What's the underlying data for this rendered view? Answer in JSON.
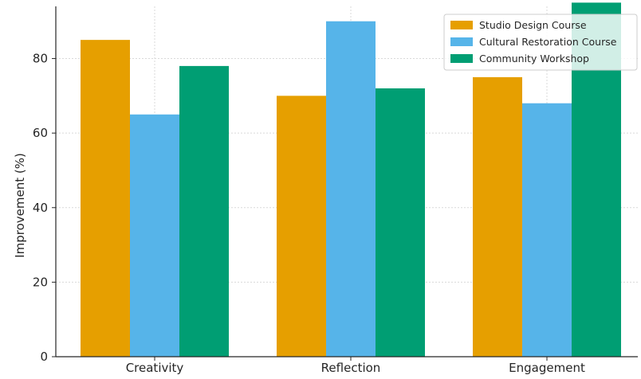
{
  "chart_data": {
    "type": "bar",
    "title": "",
    "xlabel": "",
    "ylabel": "Improvement (%)",
    "categories": [
      "Creativity",
      "Reflection",
      "Engagement"
    ],
    "series": [
      {
        "name": "Studio Design Course",
        "values": [
          85,
          70,
          75
        ],
        "color": "#E69F00"
      },
      {
        "name": "Cultural Restoration Course",
        "values": [
          65,
          90,
          68
        ],
        "color": "#56B4E9"
      },
      {
        "name": "Community Workshop",
        "values": [
          78,
          72,
          95
        ],
        "color": "#009E73"
      }
    ],
    "ylim": [
      0,
      94
    ],
    "yticks": [
      0,
      20,
      40,
      60,
      80
    ],
    "grid": true,
    "legend": "top-right"
  }
}
